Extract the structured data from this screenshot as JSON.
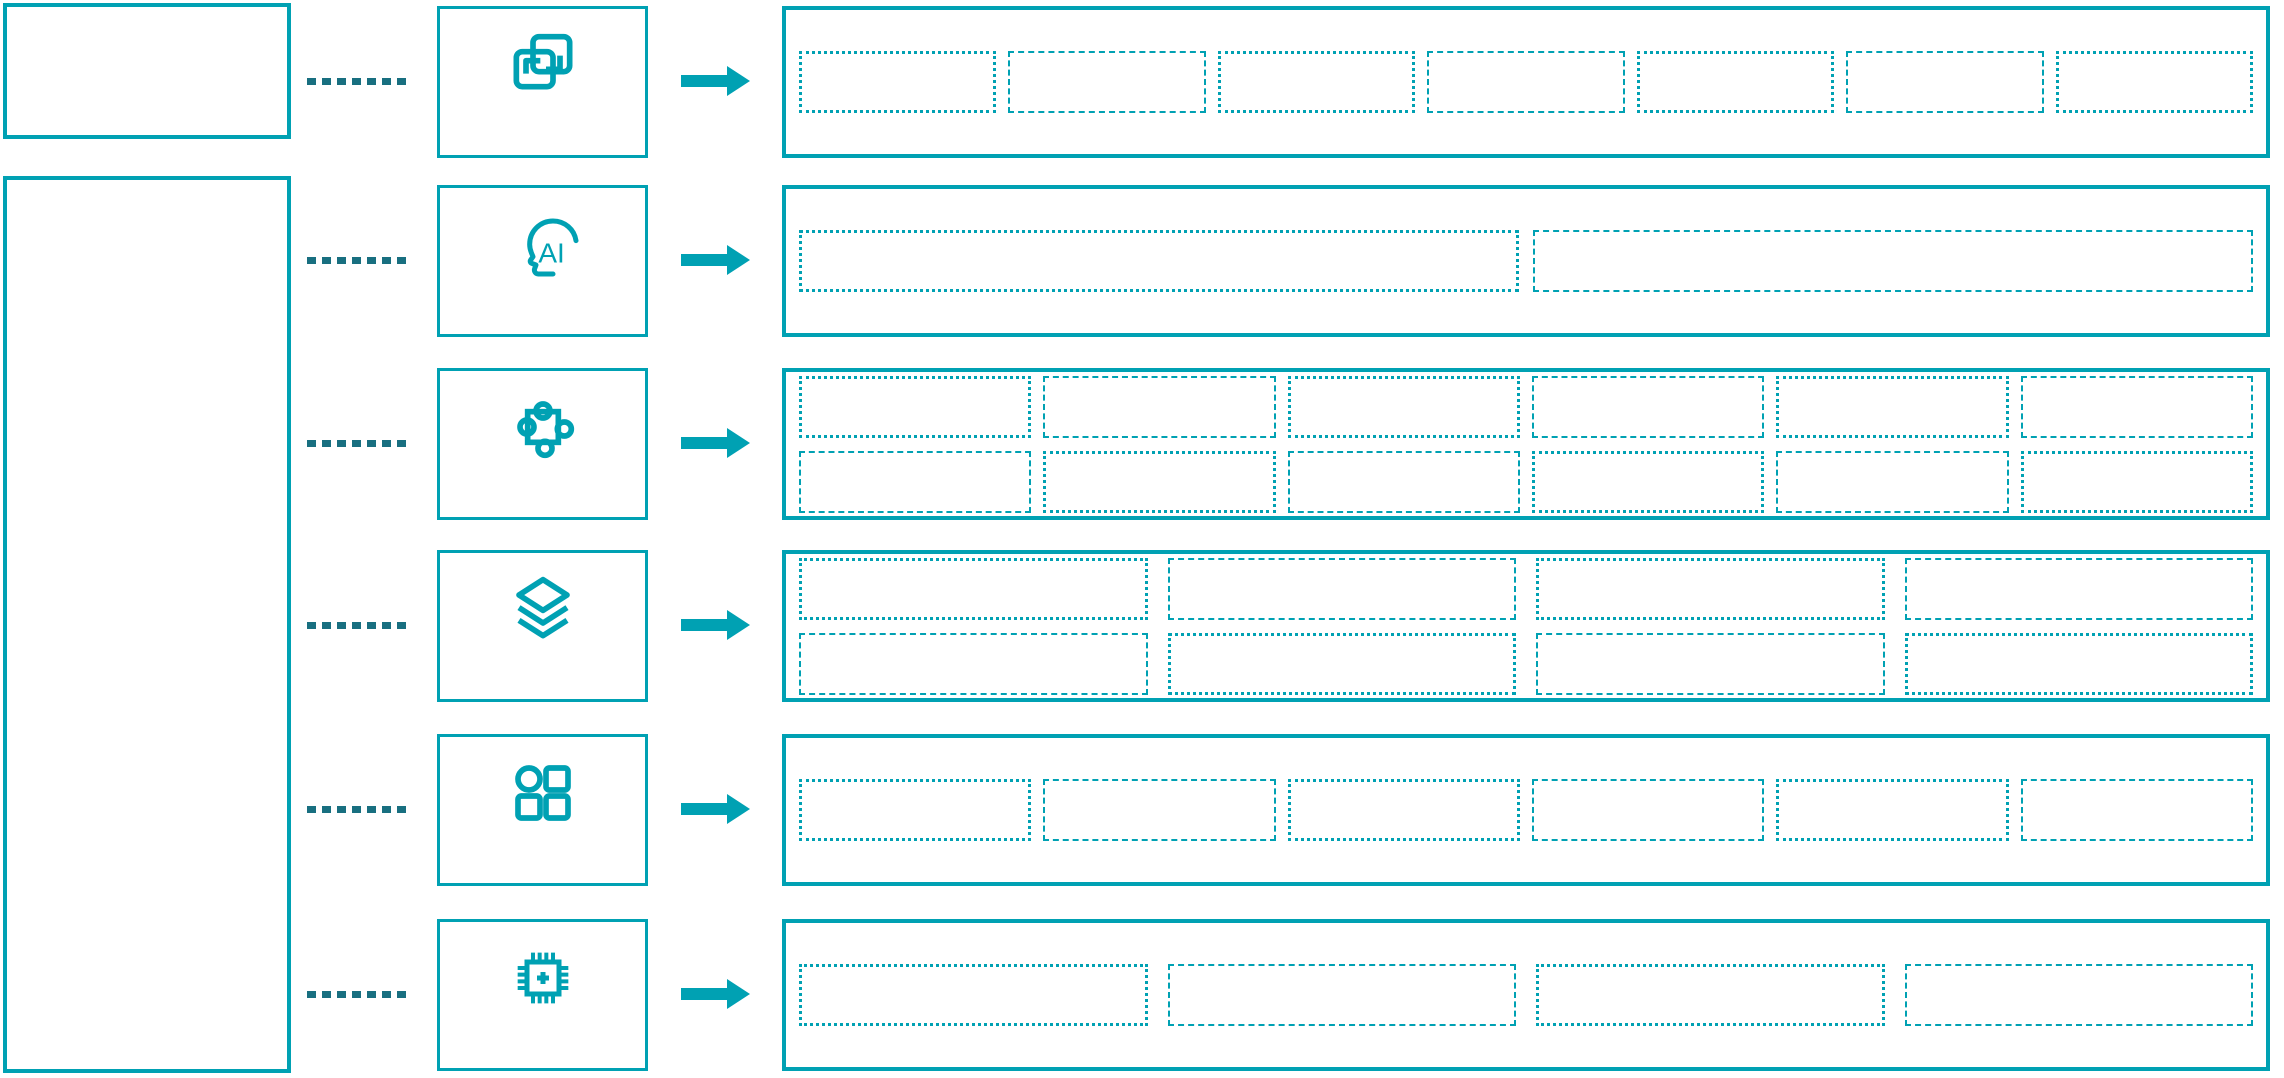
{
  "diagram": {
    "background_color": "#ffffff",
    "accent_color": "#00a1b3",
    "connector_color": "#186f80",
    "rows": [
      {
        "icon": "clone-icon",
        "slot_grid": {
          "cols": 7,
          "rows": 1
        }
      },
      {
        "icon": "ai-head-icon",
        "icon_text": "AI",
        "slot_grid": {
          "cols": 2,
          "rows": 1
        }
      },
      {
        "icon": "puzzle-icon",
        "slot_grid": {
          "cols": 6,
          "rows": 2
        }
      },
      {
        "icon": "layers-icon",
        "slot_grid": {
          "cols": 4,
          "rows": 2
        }
      },
      {
        "icon": "apps-grid-icon",
        "slot_grid": {
          "cols": 6,
          "rows": 1
        }
      },
      {
        "icon": "chip-plus-icon",
        "slot_grid": {
          "cols": 4,
          "rows": 1
        }
      }
    ]
  }
}
